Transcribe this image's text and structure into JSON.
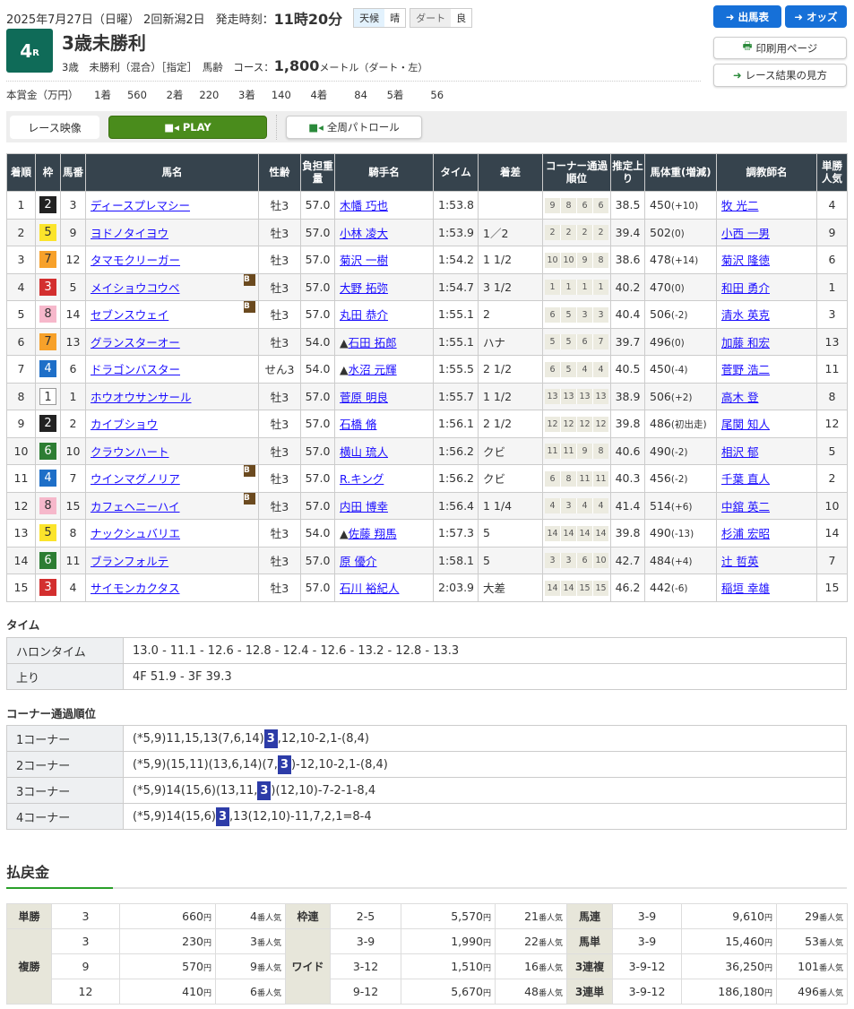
{
  "header": {
    "date": "2025年7月27日（日曜）",
    "meeting": "2回新潟2日",
    "post_label": "発走時刻：",
    "post_time": "11時20分",
    "weather_label": "天候",
    "weather": "晴",
    "track_label": "ダート",
    "track_cond": "良",
    "race_no": "4",
    "race_no_suffix": "R",
    "race_name": "3歳未勝利",
    "conditions": "3歳　未勝利（混合）［指定］　馬齢　コース：",
    "distance": "1,800",
    "distance_unit": "メートル（ダート・左）"
  },
  "prize": {
    "label": "本賞金（万円）",
    "items": [
      {
        "place": "1着",
        "value": "560"
      },
      {
        "place": "2着",
        "value": "220"
      },
      {
        "place": "3着",
        "value": "140"
      },
      {
        "place": "4着",
        "value": "84"
      },
      {
        "place": "5着",
        "value": "56"
      }
    ]
  },
  "buttons": {
    "entries": "出馬表",
    "odds": "オッズ",
    "print": "印刷用ページ",
    "howto": "レース結果の見方"
  },
  "video": {
    "label": "レース映像",
    "play": "PLAY",
    "patrol": "全周パトロール"
  },
  "colors": {
    "accent": "#1670d8",
    "header_bg": "#36434d",
    "race_no_bg": "#0f6b58",
    "play": "#4a8c1c",
    "highlight": "#2d3ca8"
  },
  "results": {
    "headers": [
      "着順",
      "枠",
      "馬番",
      "馬名",
      "性齢",
      "負担重量",
      "騎手名",
      "タイム",
      "着差",
      "コーナー通過順位",
      "推定上り",
      "馬体重(増減)",
      "調教師名",
      "単勝人気"
    ],
    "rows": [
      [
        "1",
        "2",
        "3",
        "ディースプレマシー",
        "",
        "牡3",
        "57.0",
        "",
        "木幡 巧也",
        "1:53.8",
        "",
        [
          "9",
          "8",
          "6",
          "6"
        ],
        "38.5",
        "450",
        "(+10)",
        "牧 光二",
        "4"
      ],
      [
        "2",
        "5",
        "9",
        "ヨドノタイヨウ",
        "",
        "牡3",
        "57.0",
        "",
        "小林 凌大",
        "1:53.9",
        "1／2",
        [
          "2",
          "2",
          "2",
          "2"
        ],
        "39.4",
        "502",
        "(0)",
        "小西 一男",
        "9"
      ],
      [
        "3",
        "7",
        "12",
        "タマモクリーガー",
        "",
        "牡3",
        "57.0",
        "",
        "菊沢 一樹",
        "1:54.2",
        "1 1/2",
        [
          "10",
          "10",
          "9",
          "8"
        ],
        "38.6",
        "478",
        "(+14)",
        "菊沢 隆徳",
        "6"
      ],
      [
        "4",
        "3",
        "5",
        "メイショウコウベ",
        "B",
        "牡3",
        "57.0",
        "",
        "大野 拓弥",
        "1:54.7",
        "3 1/2",
        [
          "1",
          "1",
          "1",
          "1"
        ],
        "40.2",
        "470",
        "(0)",
        "和田 勇介",
        "1"
      ],
      [
        "5",
        "8",
        "14",
        "セブンスウェイ",
        "B",
        "牡3",
        "57.0",
        "",
        "丸田 恭介",
        "1:55.1",
        "2",
        [
          "6",
          "5",
          "3",
          "3"
        ],
        "40.4",
        "506",
        "(-2)",
        "清水 英克",
        "3"
      ],
      [
        "6",
        "7",
        "13",
        "グランスターオー",
        "",
        "牡3",
        "54.0",
        "▲",
        "石田 拓郎",
        "1:55.1",
        "ハナ",
        [
          "5",
          "5",
          "6",
          "7"
        ],
        "39.7",
        "496",
        "(0)",
        "加藤 和宏",
        "13"
      ],
      [
        "7",
        "4",
        "6",
        "ドラゴンバスター",
        "",
        "せん3",
        "54.0",
        "▲",
        "水沼 元輝",
        "1:55.5",
        "2 1/2",
        [
          "6",
          "5",
          "4",
          "4"
        ],
        "40.5",
        "450",
        "(-4)",
        "菅野 浩二",
        "11"
      ],
      [
        "8",
        "1",
        "1",
        "ホウオウサンサール",
        "",
        "牡3",
        "57.0",
        "",
        "菅原 明良",
        "1:55.7",
        "1 1/2",
        [
          "13",
          "13",
          "13",
          "13"
        ],
        "38.9",
        "506",
        "(+2)",
        "高木 登",
        "8"
      ],
      [
        "9",
        "2",
        "2",
        "カイブショウ",
        "",
        "牡3",
        "57.0",
        "",
        "石橋 脩",
        "1:56.1",
        "2 1/2",
        [
          "12",
          "12",
          "12",
          "12"
        ],
        "39.8",
        "486",
        "(初出走)",
        "尾関 知人",
        "12"
      ],
      [
        "10",
        "6",
        "10",
        "クラウンハート",
        "",
        "牡3",
        "57.0",
        "",
        "横山 琉人",
        "1:56.2",
        "クビ",
        [
          "11",
          "11",
          "9",
          "8"
        ],
        "40.6",
        "490",
        "(-2)",
        "相沢 郁",
        "5"
      ],
      [
        "11",
        "4",
        "7",
        "ウインマグノリア",
        "B",
        "牡3",
        "57.0",
        "",
        "R.キング",
        "1:56.2",
        "クビ",
        [
          "6",
          "8",
          "11",
          "11"
        ],
        "40.3",
        "456",
        "(-2)",
        "千葉 直人",
        "2"
      ],
      [
        "12",
        "8",
        "15",
        "カフェヘニーハイ",
        "B",
        "牡3",
        "57.0",
        "",
        "内田 博幸",
        "1:56.4",
        "1 1/4",
        [
          "4",
          "3",
          "4",
          "4"
        ],
        "41.4",
        "514",
        "(+6)",
        "中舘 英二",
        "10"
      ],
      [
        "13",
        "5",
        "8",
        "ナックシュバリエ",
        "",
        "牡3",
        "54.0",
        "▲",
        "佐藤 翔馬",
        "1:57.3",
        "5",
        [
          "14",
          "14",
          "14",
          "14"
        ],
        "39.8",
        "490",
        "(-13)",
        "杉浦 宏昭",
        "14"
      ],
      [
        "14",
        "6",
        "11",
        "ブランフォルテ",
        "",
        "牡3",
        "57.0",
        "",
        "原 優介",
        "1:58.1",
        "5",
        [
          "3",
          "3",
          "6",
          "10"
        ],
        "42.7",
        "484",
        "(+4)",
        "辻 哲英",
        "7"
      ],
      [
        "15",
        "3",
        "4",
        "サイモンカクタス",
        "",
        "牡3",
        "57.0",
        "",
        "石川 裕紀人",
        "2:03.9",
        "大差",
        [
          "14",
          "14",
          "15",
          "15"
        ],
        "46.2",
        "442",
        "(-6)",
        "稲垣 幸雄",
        "15"
      ]
    ]
  },
  "time": {
    "title": "タイム",
    "furlong_label": "ハロンタイム",
    "furlong": "13.0 - 11.1 - 12.6 - 12.8 - 12.4 - 12.6 - 13.2 - 12.8 - 13.3",
    "last_label": "上り",
    "last": "4F 51.9 - 3F 39.3"
  },
  "corners": {
    "title": "コーナー通過順位",
    "rows": [
      {
        "label": "1コーナー",
        "before": "(*5,9)11,15,13(7,6,14)",
        "hl": "3",
        "after": ",12,10-2,1-(8,4)"
      },
      {
        "label": "2コーナー",
        "before": "(*5,9)(15,11)(13,6,14)(7,",
        "hl": "3",
        "after": ")-12,10-2,1-(8,4)"
      },
      {
        "label": "3コーナー",
        "before": "(*5,9)14(15,6)(13,11,",
        "hl": "3",
        "after": ")(12,10)-7-2-1-8,4"
      },
      {
        "label": "4コーナー",
        "before": "(*5,9)14(15,6)",
        "hl": "3",
        "after": ",13(12,10)-11,7,2,1=8-4"
      }
    ]
  },
  "payout": {
    "title": "払戻金",
    "yen": "円",
    "pop": "番人気",
    "tansho": {
      "label": "単勝",
      "rows": [
        [
          "3",
          "660",
          "4"
        ]
      ]
    },
    "fukusho": {
      "label": "複勝",
      "rows": [
        [
          "3",
          "230",
          "3"
        ],
        [
          "9",
          "570",
          "9"
        ],
        [
          "12",
          "410",
          "6"
        ]
      ]
    },
    "wakuren": {
      "label": "枠連",
      "rows": [
        [
          "2-5",
          "5,570",
          "21"
        ]
      ]
    },
    "wide": {
      "label": "ワイド",
      "rows": [
        [
          "3-9",
          "1,990",
          "22"
        ],
        [
          "3-12",
          "1,510",
          "16"
        ],
        [
          "9-12",
          "5,670",
          "48"
        ]
      ]
    },
    "umaren": {
      "label": "馬連",
      "rows": [
        [
          "3-9",
          "9,610",
          "29"
        ]
      ]
    },
    "umatan": {
      "label": "馬単",
      "rows": [
        [
          "3-9",
          "15,460",
          "53"
        ]
      ]
    },
    "sanrenpuku": {
      "label": "3連複",
      "rows": [
        [
          "3-9-12",
          "36,250",
          "101"
        ]
      ]
    },
    "sanrentan": {
      "label": "3連単",
      "rows": [
        [
          "3-9-12",
          "186,180",
          "496"
        ]
      ]
    }
  }
}
